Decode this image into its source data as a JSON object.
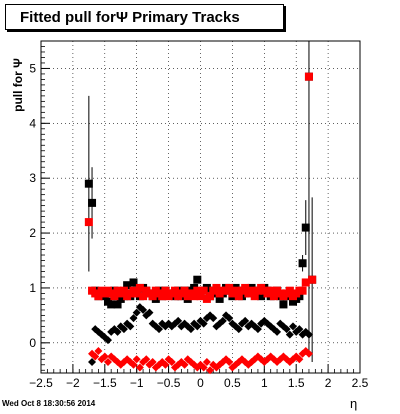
{
  "chart_data": {
    "type": "scatter",
    "title": "Fitted pull forΨ   Primary Tracks",
    "xlabel": "η",
    "ylabel": "pull for Ψ",
    "xlim": [
      -2.5,
      2.5
    ],
    "ylim": [
      -0.55,
      5.5
    ],
    "grid": true,
    "x_ticks": [
      -2.5,
      -2,
      -1.5,
      -1,
      -0.5,
      0,
      0.5,
      1,
      1.5,
      2,
      2.5
    ],
    "x_tick_labels": [
      "−2.5",
      "−2",
      "−1.5",
      "−1",
      "−0.5",
      "0",
      "0.5",
      "1",
      "1.5",
      "2",
      "2.5"
    ],
    "y_ticks": [
      0,
      1,
      2,
      3,
      4,
      5
    ],
    "y_tick_labels": [
      "0",
      "1",
      "2",
      "3",
      "4",
      "5"
    ],
    "series": [
      {
        "color": "#000000",
        "marker": "square",
        "x": [
          -1.75,
          -1.7,
          -1.65,
          -1.6,
          -1.55,
          -1.5,
          -1.45,
          -1.4,
          -1.35,
          -1.3,
          -1.25,
          -1.2,
          -1.15,
          -1.1,
          -1.05,
          -1.0,
          -0.95,
          -0.9,
          -0.85,
          -0.8,
          -0.75,
          -0.7,
          -0.65,
          -0.6,
          -0.55,
          -0.5,
          -0.45,
          -0.4,
          -0.35,
          -0.3,
          -0.25,
          -0.2,
          -0.15,
          -0.1,
          -0.05,
          0.0,
          0.05,
          0.1,
          0.15,
          0.2,
          0.25,
          0.3,
          0.35,
          0.4,
          0.45,
          0.5,
          0.55,
          0.6,
          0.65,
          0.7,
          0.75,
          0.8,
          0.85,
          0.9,
          0.95,
          1.0,
          1.05,
          1.1,
          1.15,
          1.2,
          1.25,
          1.3,
          1.35,
          1.4,
          1.45,
          1.5,
          1.55,
          1.6,
          1.65,
          1.7,
          1.75
        ],
        "values": [
          2.9,
          2.55,
          0.95,
          0.85,
          0.9,
          0.85,
          0.75,
          0.7,
          0.95,
          0.7,
          0.8,
          0.85,
          1.05,
          0.85,
          1.1,
          0.95,
          0.85,
          1.0,
          0.95,
          0.9,
          0.85,
          0.8,
          0.95,
          0.85,
          0.95,
          0.9,
          0.9,
          0.85,
          0.95,
          0.85,
          0.95,
          0.8,
          0.95,
          1.0,
          1.15,
          0.9,
          0.95,
          1.0,
          0.85,
          0.95,
          0.9,
          0.8,
          0.9,
          1.0,
          0.95,
          0.85,
          1.0,
          0.95,
          0.85,
          0.9,
          0.95,
          1.0,
          0.9,
          0.95,
          0.85,
          1.0,
          0.95,
          0.85,
          0.9,
          0.95,
          0.85,
          0.7,
          0.85,
          0.9,
          0.75,
          0.8,
          0.85,
          1.45,
          2.1,
          4.85,
          1.15
        ],
        "errors": [
          1.6,
          0.65,
          0,
          0,
          0,
          0,
          0,
          0,
          0,
          0,
          0,
          0,
          0,
          0,
          0,
          0,
          0,
          0,
          0,
          0,
          0,
          0,
          0,
          0,
          0,
          0,
          0,
          0,
          0,
          0,
          0,
          0,
          0,
          0,
          0,
          0,
          0,
          0,
          0,
          0,
          0,
          0,
          0,
          0,
          0,
          0,
          0,
          0,
          0,
          0,
          0,
          0,
          0,
          0,
          0,
          0,
          0,
          0,
          0,
          0,
          0,
          0,
          0,
          0,
          0,
          0,
          0,
          0.15,
          0.5,
          5,
          1.5
        ]
      },
      {
        "color": "#ff0000",
        "marker": "square",
        "x": [
          -1.75,
          -1.7,
          -1.65,
          -1.6,
          -1.55,
          -1.5,
          -1.45,
          -1.4,
          -1.35,
          -1.3,
          -1.25,
          -1.2,
          -1.15,
          -1.1,
          -1.05,
          -1.0,
          -0.95,
          -0.9,
          -0.85,
          -0.8,
          -0.75,
          -0.7,
          -0.65,
          -0.6,
          -0.55,
          -0.5,
          -0.45,
          -0.4,
          -0.35,
          -0.3,
          -0.25,
          -0.2,
          -0.15,
          -0.1,
          -0.05,
          0.0,
          0.05,
          0.1,
          0.15,
          0.2,
          0.25,
          0.3,
          0.35,
          0.4,
          0.45,
          0.5,
          0.55,
          0.6,
          0.65,
          0.7,
          0.75,
          0.8,
          0.85,
          0.9,
          0.95,
          1.0,
          1.05,
          1.1,
          1.15,
          1.2,
          1.25,
          1.3,
          1.35,
          1.4,
          1.45,
          1.5,
          1.55,
          1.6,
          1.65,
          1.7,
          1.75
        ],
        "values": [
          2.2,
          0.95,
          0.9,
          0.85,
          0.95,
          0.9,
          0.95,
          0.9,
          0.85,
          0.95,
          0.9,
          0.95,
          0.85,
          0.9,
          0.95,
          0.9,
          1.0,
          0.85,
          0.95,
          0.9,
          0.85,
          0.95,
          0.9,
          0.85,
          0.95,
          0.85,
          0.9,
          0.95,
          0.85,
          0.9,
          0.95,
          0.85,
          0.9,
          0.85,
          0.95,
          0.85,
          0.95,
          0.8,
          0.85,
          0.95,
          1.0,
          0.9,
          0.95,
          0.95,
          1.0,
          0.9,
          0.95,
          0.85,
          0.95,
          1.0,
          0.9,
          0.95,
          0.85,
          0.95,
          1.0,
          0.95,
          0.9,
          0.95,
          0.85,
          0.95,
          0.9,
          0.85,
          0.9,
          0.95,
          0.85,
          0.9,
          0.95,
          0.95,
          1.1,
          4.85,
          1.15
        ],
        "errors": [
          0,
          0,
          0,
          0,
          0,
          0,
          0,
          0,
          0,
          0,
          0,
          0,
          0,
          0,
          0,
          0,
          0,
          0,
          0,
          0,
          0,
          0,
          0,
          0,
          0,
          0,
          0,
          0,
          0,
          0,
          0,
          0,
          0,
          0,
          0,
          0,
          0,
          0,
          0,
          0,
          0,
          0,
          0,
          0,
          0,
          0,
          0,
          0,
          0,
          0,
          0,
          0,
          0,
          0,
          0,
          0,
          0,
          0,
          0,
          0,
          0,
          0,
          0,
          0,
          0,
          0,
          0,
          0,
          0,
          0,
          0
        ]
      },
      {
        "color": "#000000",
        "marker": "diamond",
        "x": [
          -1.7,
          -1.65,
          -1.6,
          -1.55,
          -1.5,
          -1.45,
          -1.4,
          -1.35,
          -1.3,
          -1.25,
          -1.2,
          -1.15,
          -1.1,
          -1.05,
          -1.0,
          -0.95,
          -0.9,
          -0.85,
          -0.8,
          -0.75,
          -0.7,
          -0.65,
          -0.6,
          -0.55,
          -0.5,
          -0.45,
          -0.4,
          -0.35,
          -0.3,
          -0.25,
          -0.2,
          -0.15,
          -0.1,
          -0.05,
          0.0,
          0.05,
          0.1,
          0.15,
          0.2,
          0.25,
          0.3,
          0.35,
          0.4,
          0.45,
          0.5,
          0.55,
          0.6,
          0.65,
          0.7,
          0.75,
          0.8,
          0.85,
          0.9,
          0.95,
          1.0,
          1.05,
          1.1,
          1.15,
          1.2,
          1.25,
          1.3,
          1.35,
          1.4,
          1.45,
          1.5,
          1.55,
          1.6,
          1.65,
          1.7
        ],
        "values": [
          -0.35,
          0.25,
          0.2,
          0.15,
          0.1,
          0.05,
          0.2,
          0.25,
          0.2,
          0.3,
          0.25,
          0.35,
          0.3,
          0.45,
          0.55,
          0.65,
          0.6,
          0.5,
          0.55,
          0.35,
          0.3,
          0.25,
          0.35,
          0.3,
          0.35,
          0.3,
          0.35,
          0.4,
          0.3,
          0.35,
          0.3,
          0.25,
          0.35,
          0.3,
          0.4,
          0.35,
          0.45,
          0.5,
          0.45,
          0.3,
          0.35,
          0.4,
          0.5,
          0.45,
          0.35,
          0.3,
          0.25,
          0.35,
          0.4,
          0.3,
          0.35,
          0.3,
          0.25,
          0.35,
          0.4,
          0.35,
          0.3,
          0.25,
          0.2,
          0.35,
          0.3,
          0.25,
          0.15,
          0.3,
          0.2,
          0.25,
          0.15,
          0.2,
          0.15
        ]
      },
      {
        "color": "#ff0000",
        "marker": "diamond",
        "x": [
          -1.7,
          -1.65,
          -1.6,
          -1.55,
          -1.5,
          -1.45,
          -1.4,
          -1.35,
          -1.3,
          -1.25,
          -1.2,
          -1.15,
          -1.1,
          -1.05,
          -1.0,
          -0.95,
          -0.9,
          -0.85,
          -0.8,
          -0.75,
          -0.7,
          -0.65,
          -0.6,
          -0.55,
          -0.5,
          -0.45,
          -0.4,
          -0.35,
          -0.3,
          -0.25,
          -0.2,
          -0.15,
          -0.1,
          -0.05,
          0.0,
          0.05,
          0.1,
          0.15,
          0.2,
          0.25,
          0.3,
          0.35,
          0.4,
          0.45,
          0.5,
          0.55,
          0.6,
          0.65,
          0.7,
          0.75,
          0.8,
          0.85,
          0.9,
          0.95,
          1.0,
          1.05,
          1.1,
          1.15,
          1.2,
          1.25,
          1.3,
          1.35,
          1.4,
          1.45,
          1.5,
          1.55,
          1.6,
          1.65,
          1.7
        ],
        "values": [
          -0.2,
          -0.25,
          -0.15,
          -0.3,
          -0.25,
          -0.35,
          -0.25,
          -0.3,
          -0.35,
          -0.4,
          -0.35,
          -0.3,
          -0.35,
          -0.4,
          -0.3,
          -0.45,
          -0.35,
          -0.3,
          -0.4,
          -0.35,
          -0.45,
          -0.4,
          -0.35,
          -0.4,
          -0.3,
          -0.35,
          -0.45,
          -0.4,
          -0.35,
          -0.4,
          -0.3,
          -0.35,
          -0.4,
          -0.45,
          -0.4,
          -0.45,
          -0.35,
          -0.5,
          -0.4,
          -0.45,
          -0.4,
          -0.35,
          -0.3,
          -0.35,
          -0.45,
          -0.4,
          -0.35,
          -0.3,
          -0.35,
          -0.4,
          -0.35,
          -0.3,
          -0.25,
          -0.3,
          -0.35,
          -0.3,
          -0.25,
          -0.3,
          -0.35,
          -0.3,
          -0.25,
          -0.3,
          -0.35,
          -0.3,
          -0.25,
          -0.3,
          -0.2,
          -0.15,
          -0.2
        ]
      }
    ]
  },
  "footer": "Wed Oct  8 18:30:56 2014"
}
